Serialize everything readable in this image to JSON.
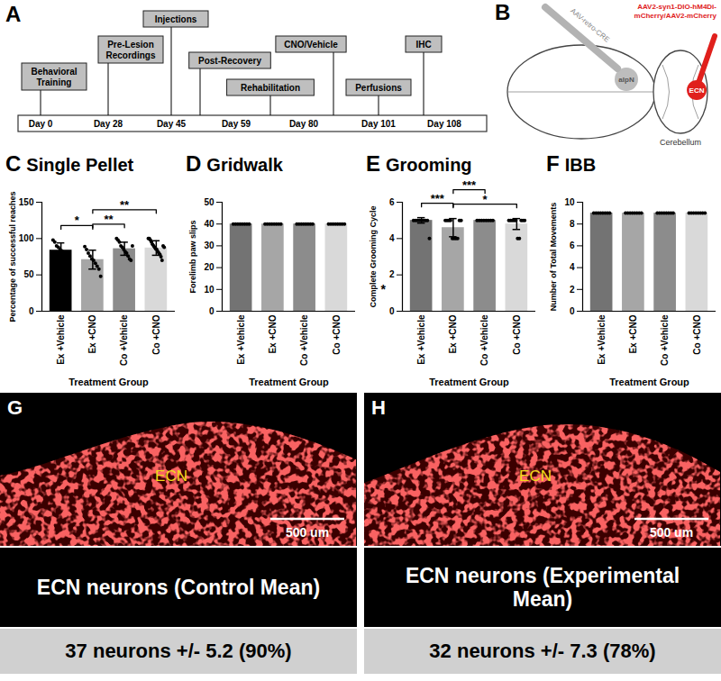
{
  "chart_data": [
    {
      "type": "bar",
      "panel": "C",
      "title": "Single Pellet",
      "categories": [
        "Ex +Vehicle",
        "Ex +CNO",
        "Co +Vehicle",
        "Co +CNO"
      ],
      "values": [
        84,
        71,
        86,
        87
      ],
      "errors": [
        10,
        13,
        9,
        10
      ],
      "points": [
        [
          98,
          95,
          90,
          88,
          85,
          83,
          80,
          78,
          75,
          70
        ],
        [
          89,
          85,
          80,
          76,
          72,
          70,
          66,
          62,
          58,
          48
        ],
        [
          100,
          98,
          95,
          90,
          88,
          85,
          82,
          80,
          76,
          72,
          70,
          90
        ],
        [
          100,
          100,
          98,
          95,
          92,
          90,
          88,
          86,
          85,
          82,
          80,
          78,
          75,
          70,
          90,
          88
        ]
      ],
      "colors": [
        "#000000",
        "#a6a6a6",
        "#8c8c8c",
        "#d9d9d9"
      ],
      "ylim": [
        0,
        150
      ],
      "yticks": [
        0,
        50,
        100,
        150
      ],
      "ylabel": "Percentage of successful reaches",
      "xlabel": "Treatment Group",
      "comparisons": [
        {
          "from": "Ex +Vehicle",
          "to": "Ex +CNO",
          "label": "*"
        },
        {
          "from": "Ex +CNO",
          "to": "Co +Vehicle",
          "label": "**"
        },
        {
          "from": "Ex +CNO",
          "to": "Co +CNO",
          "label": "**"
        }
      ]
    },
    {
      "type": "bar",
      "panel": "D",
      "title": "Gridwalk",
      "categories": [
        "Ex +Vehicle",
        "Ex +CNO",
        "Co +Vehicle",
        "Co +CNO"
      ],
      "values": [
        40,
        40,
        40,
        40
      ],
      "errors": [
        0,
        0,
        0,
        0
      ],
      "points": [
        [
          40,
          40,
          40,
          40,
          40,
          40,
          40,
          40
        ],
        [
          40,
          40,
          40,
          40,
          40,
          40,
          40,
          40
        ],
        [
          40,
          40,
          40,
          40,
          40,
          40,
          40,
          40
        ],
        [
          40,
          40,
          40,
          40,
          40,
          40,
          40,
          40
        ]
      ],
      "colors": [
        "#737373",
        "#a6a6a6",
        "#8c8c8c",
        "#d9d9d9"
      ],
      "ylim": [
        0,
        50
      ],
      "yticks": [
        0,
        10,
        20,
        30,
        40,
        50
      ],
      "ylabel": "Forelimb paw slips",
      "xlabel": "Treatment Group"
    },
    {
      "type": "bar",
      "panel": "E",
      "title": "Grooming",
      "categories": [
        "Ex +Vehicle",
        "Ex +CNO",
        "Co +Vehicle",
        "Co +CNO"
      ],
      "values": [
        5,
        4.6,
        5,
        4.8
      ],
      "errors": [
        0.15,
        0.5,
        0,
        0.3
      ],
      "points": [
        [
          5,
          5,
          5,
          5,
          5,
          5,
          5,
          5,
          4
        ],
        [
          5,
          5,
          5,
          5,
          4,
          4,
          4,
          4,
          5,
          5
        ],
        [
          5,
          5,
          5,
          5,
          5,
          5,
          5,
          5
        ],
        [
          5,
          5,
          5,
          5,
          5,
          4,
          4,
          5,
          5,
          5
        ]
      ],
      "colors": [
        "#737373",
        "#a6a6a6",
        "#8c8c8c",
        "#d9d9d9"
      ],
      "ylim": [
        0,
        6
      ],
      "yticks": [
        0,
        2,
        4,
        6
      ],
      "ylabel": "Complete Grooming Cycle",
      "xlabel": "Treatment Group",
      "annotations": [
        "*"
      ],
      "comparisons": [
        {
          "from": "Ex +CNO",
          "to": "Co +CNO",
          "label": "*"
        },
        {
          "from": "Ex +Vehicle",
          "to": "Ex +CNO",
          "label": "***"
        },
        {
          "from": "Ex +CNO",
          "to": "Co +Vehicle",
          "label": "***"
        }
      ]
    },
    {
      "type": "bar",
      "panel": "F",
      "title": "IBB",
      "categories": [
        "Ex +Vehicle",
        "Ex +CNO",
        "Co +Vehicle",
        "Co +CNO"
      ],
      "values": [
        9,
        9,
        9,
        9
      ],
      "errors": [
        0,
        0,
        0,
        0
      ],
      "points": [
        [
          9,
          9,
          9,
          9,
          9,
          9,
          9,
          9
        ],
        [
          9,
          9,
          9,
          9,
          9,
          9,
          9,
          9
        ],
        [
          9,
          9,
          9,
          9,
          9,
          9,
          9,
          9
        ],
        [
          9,
          9,
          9,
          9,
          9,
          9,
          9,
          9
        ]
      ],
      "colors": [
        "#737373",
        "#a6a6a6",
        "#8c8c8c",
        "#d9d9d9"
      ],
      "ylim": [
        0,
        10
      ],
      "yticks": [
        0,
        2,
        4,
        6,
        8,
        10
      ],
      "ylabel": "Number of Total Movements",
      "xlabel": "Treatment Group"
    }
  ],
  "timeline": {
    "panel": "A",
    "events": [
      "Behavioral Training",
      "Pre-Lesion Recordings",
      "Injections",
      "Post-Recovery",
      "Rehabilitation",
      "CNO/Vehicle",
      "Perfusions",
      "IHC"
    ],
    "days": [
      "Day 0",
      "Day 28",
      "Day 45",
      "Day 59",
      "Day 80",
      "Day 101",
      "Day 108"
    ]
  },
  "diagram": {
    "panel": "B",
    "left_injection": "AAV-retro-CRE",
    "right_injection": "AAV2-syn1-DIO-hM4Di-mCherry/AAV2-mCherry",
    "target": "aIpN",
    "source": "ECN",
    "region": "Cerebellum"
  },
  "micrographs": [
    {
      "panel": "G",
      "region": "ECN",
      "scale_bar": "500 um",
      "caption": "ECN neurons (Control Mean)",
      "result": "37 neurons +/- 5.2 (90%)"
    },
    {
      "panel": "H",
      "region": "ECN",
      "scale_bar": "500 um",
      "caption": "ECN neurons (Experimental Mean)",
      "result": "32 neurons +/- 7.3 (78%)"
    }
  ]
}
